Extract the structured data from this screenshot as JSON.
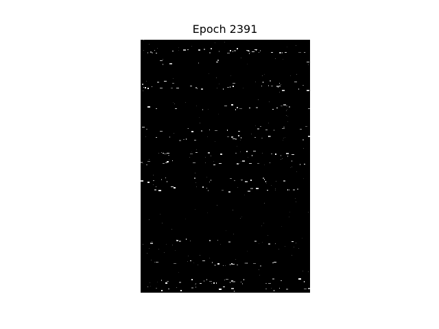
{
  "figure": {
    "title": "Epoch 2391",
    "background_color": "#ffffff",
    "image_background": "#000000",
    "pixel_color": "#ffffff"
  }
}
